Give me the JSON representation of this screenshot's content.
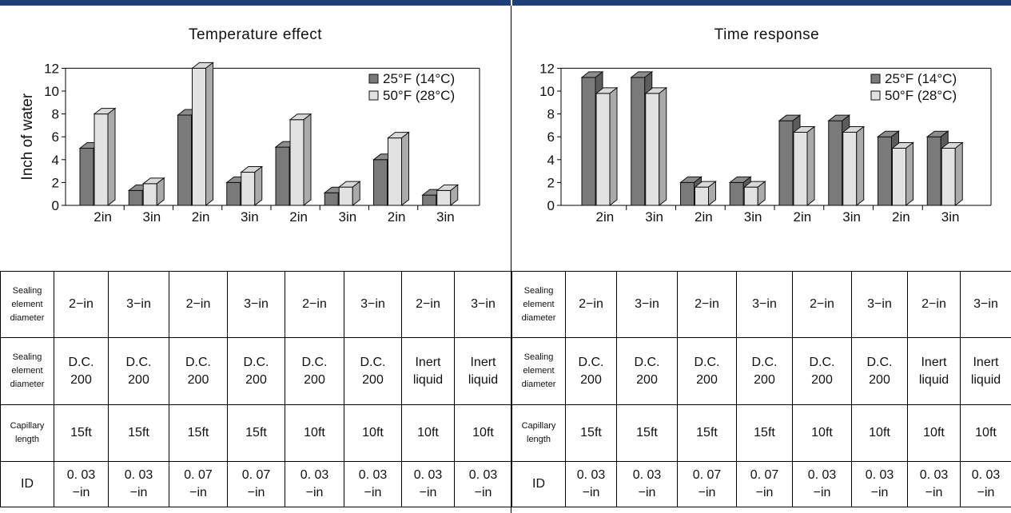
{
  "chart_data": [
    {
      "type": "bar",
      "title": "Temperature effect",
      "ylabel": "Inch of water",
      "xlabel": "",
      "categories": [
        "2in",
        "3in",
        "2in",
        "3in",
        "2in",
        "3in",
        "2in",
        "3in"
      ],
      "ylim": [
        0,
        12
      ],
      "yticks": [
        0,
        2,
        4,
        6,
        8,
        10,
        12
      ],
      "series": [
        {
          "name": "25°F (14°C)",
          "values": [
            5.0,
            1.3,
            7.9,
            2.0,
            5.1,
            1.1,
            4.0,
            0.9
          ]
        },
        {
          "name": "50°F (28°C)",
          "values": [
            8.0,
            1.9,
            12.0,
            2.9,
            7.5,
            1.6,
            5.9,
            1.3
          ]
        }
      ],
      "legend": "top-right",
      "colors": {
        "series1": "#7a7a7a",
        "series2": "#e2e2e2"
      }
    },
    {
      "type": "bar",
      "title": "Time response",
      "ylabel": "",
      "xlabel": "",
      "categories": [
        "2in",
        "3in",
        "2in",
        "3in",
        "2in",
        "3in",
        "2in",
        "3in"
      ],
      "ylim": [
        0,
        12
      ],
      "yticks": [
        0,
        2,
        4,
        6,
        8,
        10,
        12
      ],
      "series": [
        {
          "name": "25°F (14°C)",
          "values": [
            11.2,
            11.2,
            2.0,
            2.0,
            7.4,
            7.4,
            6.0,
            6.0
          ]
        },
        {
          "name": "50°F (28°C)",
          "values": [
            9.8,
            9.8,
            1.6,
            1.6,
            6.4,
            6.4,
            5.0,
            5.0
          ]
        }
      ],
      "legend": "top-right",
      "colors": {
        "series1": "#7a7a7a",
        "series2": "#e2e2e2"
      }
    }
  ],
  "tables": {
    "left": {
      "rows": [
        {
          "header": "Sealing\nelement\ndiameter",
          "cells": [
            "2−in",
            "3−in",
            "2−in",
            "3−in",
            "2−in",
            "3−in",
            "2−in",
            "3−in"
          ]
        },
        {
          "header": "Sealing\nelement\ndiameter",
          "cells": [
            "D.C.\n200",
            "D.C.\n200",
            "D.C.\n200",
            "D.C.\n200",
            "D.C.\n200",
            "D.C.\n200",
            "Inert\nliquid",
            "Inert\nliquid"
          ]
        },
        {
          "header": "Capillary\nlength",
          "cells": [
            "15ft",
            "15ft",
            "15ft",
            "15ft",
            "10ft",
            "10ft",
            "10ft",
            "10ft"
          ]
        },
        {
          "header": "ID",
          "cells": [
            "0. 03\n−in",
            "0. 03\n−in",
            "0. 07\n−in",
            "0. 07\n−in",
            "0. 03\n−in",
            "0. 03\n−in",
            "0. 03\n−in",
            "0. 03\n−in"
          ]
        }
      ]
    },
    "right": {
      "rows": [
        {
          "header": "Sealing\nelement\ndiameter",
          "cells": [
            "2−in",
            "3−in",
            "2−in",
            "3−in",
            "2−in",
            "3−in",
            "2−in",
            "3−in"
          ]
        },
        {
          "header": "Sealing\nelement\ndiameter",
          "cells": [
            "D.C.\n200",
            "D.C.\n200",
            "D.C.\n200",
            "D.C.\n200",
            "D.C.\n200",
            "D.C.\n200",
            "Inert\nliquid",
            "Inert\nliquid"
          ]
        },
        {
          "header": "Capillary\nlength",
          "cells": [
            "15ft",
            "15ft",
            "15ft",
            "15ft",
            "10ft",
            "10ft",
            "10ft",
            "10ft"
          ]
        },
        {
          "header": "ID",
          "cells": [
            "0. 03\n−in",
            "0. 03\n−in",
            "0. 07\n−in",
            "0. 07\n−in",
            "0. 03\n−in",
            "0. 03\n−in",
            "0. 03\n−in",
            "0. 03\n−in"
          ]
        }
      ]
    }
  }
}
